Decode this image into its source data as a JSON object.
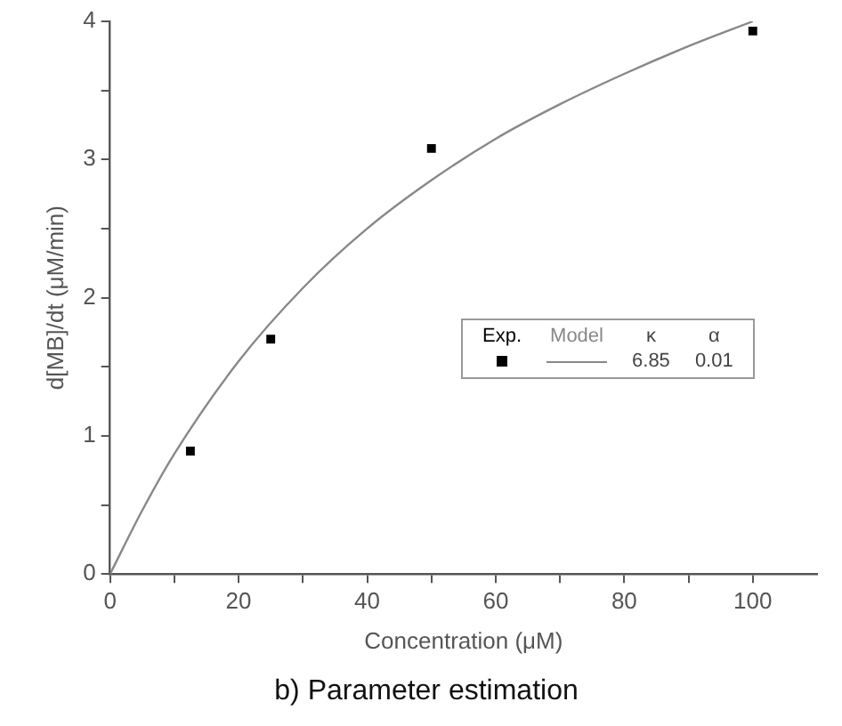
{
  "chart_data": {
    "type": "scatter",
    "title": "b) Parameter estimation",
    "xlabel": "Concentration (μM)",
    "ylabel": "d[MB]/dt (μM/min)",
    "xlim": [
      0,
      110
    ],
    "xticks": [
      0,
      {
        "value": 10,
        "label": null
      },
      20,
      {
        "value": 30,
        "label": null
      },
      40,
      {
        "value": 50,
        "label": null
      },
      60,
      {
        "value": 70,
        "label": null
      },
      80,
      {
        "value": 90,
        "label": null
      },
      100
    ],
    "ylim": [
      0,
      4
    ],
    "yticks": [
      0,
      {
        "value": 0.5,
        "label": null
      },
      1,
      {
        "value": 1.5,
        "label": null
      },
      2,
      {
        "value": 2.5,
        "label": null
      },
      3,
      {
        "value": 3.5,
        "label": null
      },
      4
    ],
    "grid": false,
    "legend": "right",
    "annotations": [
      "κ",
      "α",
      "6.85",
      "0.01"
    ],
    "series": [
      {
        "name": "Exp.",
        "marker": "square",
        "color": "#000000",
        "x": [
          12.5,
          25,
          50,
          100
        ],
        "values": [
          0.89,
          1.7,
          3.08,
          3.93
        ]
      },
      {
        "name": "Model",
        "type": "line",
        "marker": "none",
        "color": "#888888",
        "x": [
          0,
          5,
          10,
          20,
          30,
          40,
          50,
          60,
          70,
          80,
          90,
          100
        ],
        "values": [
          0,
          0.46,
          0.87,
          1.54,
          2.07,
          2.5,
          2.85,
          3.15,
          3.4,
          3.62,
          3.82,
          4.0
        ]
      }
    ]
  }
}
